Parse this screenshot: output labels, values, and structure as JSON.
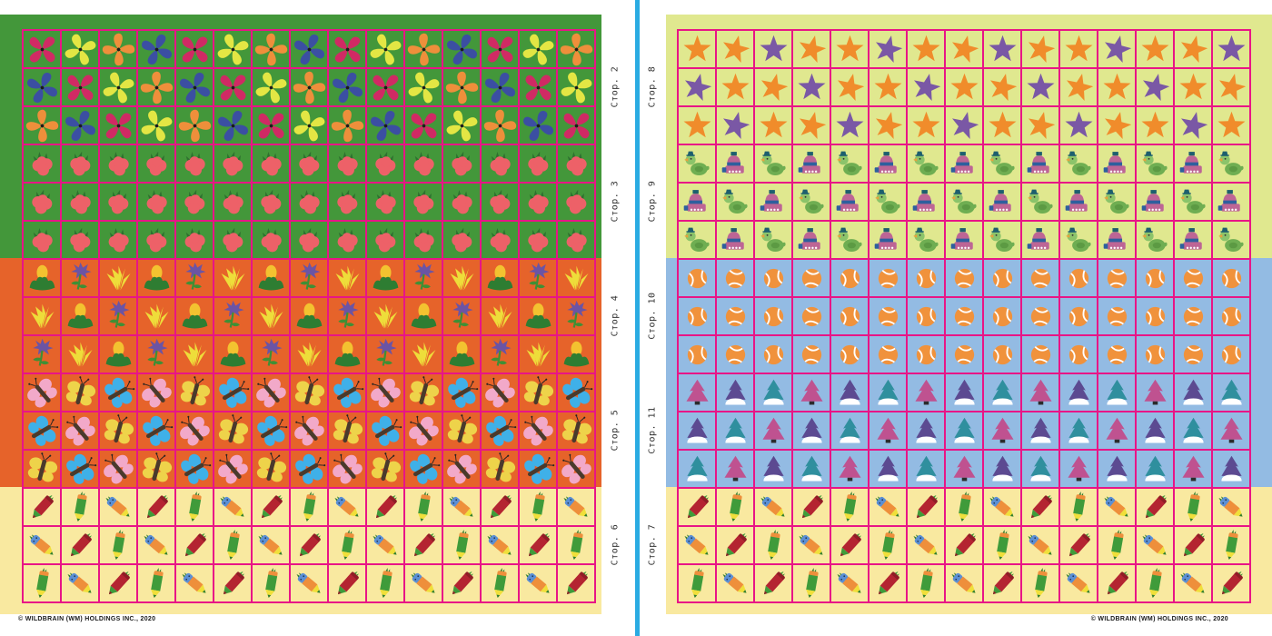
{
  "copyright": "© WILDBRAIN (WM) HOLDINGS INC., 2020",
  "colors": {
    "grid_line": "#e81586",
    "divider": "#2aabe2",
    "page_bg": "#ffffff",
    "band_green": "#43973a",
    "band_orange": "#e6632a",
    "band_yellow": "#f9e9a0",
    "band_lime": "#e0e88f",
    "band_blue": "#93bbe3",
    "label_text": "#333333"
  },
  "left_page": {
    "bands": [
      "band_green",
      "band_orange",
      "band_yellow"
    ],
    "sections": [
      {
        "id": "crop2",
        "label": "Стор. 2",
        "legend": {
          "R": {
            "symbol": "pinwheel",
            "name": "pinwheel-red",
            "color": "#d02a64",
            "rotate": 0
          },
          "Y": {
            "symbol": "pinwheel",
            "name": "pinwheel-yellow",
            "color": "#e3e644",
            "rotate": 25
          },
          "O": {
            "symbol": "pinwheel",
            "name": "pinwheel-orange",
            "color": "#ee8f3b",
            "rotate": 45
          },
          "B": {
            "symbol": "pinwheel",
            "name": "pinwheel-blue",
            "color": "#3b4fa2",
            "rotate": 70
          }
        },
        "rows": [
          "RYOBRYOBRYOBRYO",
          "BRYOBRYOBRYOBRY",
          "OBRYOBRYOBRYOBR"
        ]
      },
      {
        "id": "crop3",
        "label": "Стор. 3",
        "legend": {
          "S": {
            "symbol": "strawberry",
            "name": "strawberry"
          }
        },
        "rows": [
          "SSSSSSSSSSSSSSS",
          "SSSSSSSSSSSSSSS",
          "SSSSSSSSSSSSSSS"
        ]
      },
      {
        "id": "crop4",
        "label": "Стор. 4",
        "legend": {
          "C": {
            "symbol": "corn",
            "name": "corn-plant"
          },
          "F": {
            "symbol": "cornflower",
            "name": "purple-cornflower"
          },
          "G": {
            "symbol": "grass",
            "name": "yellow-grass-tuft"
          }
        },
        "rows": [
          "CFGCFGCFGCFGCFG",
          "GCFGCFGCFGCFGCF",
          "FGCFGCFGCFGCFGC"
        ]
      },
      {
        "id": "crop5",
        "label": "Стор. 5",
        "legend": {
          "P": {
            "symbol": "butterfly",
            "name": "butterfly-pink",
            "color": "#f2a9c9",
            "rotate": 0
          },
          "Y": {
            "symbol": "butterfly",
            "name": "butterfly-yellow",
            "color": "#eed34a",
            "rotate": 55
          },
          "B": {
            "symbol": "butterfly",
            "name": "butterfly-blue",
            "color": "#3fb0e8",
            "rotate": 100
          }
        },
        "rows": [
          "PYBPYBPYBPYBPYB",
          "BPYBPYBPYBPYBPY",
          "YBPYBPYBPYBPYBP"
        ]
      },
      {
        "id": "crop6",
        "label": "Стор. 6",
        "legend": {
          "R": {
            "symbol": "pencil-red",
            "name": "pencil-red"
          },
          "G": {
            "symbol": "pencil-green",
            "name": "pencil-orange-green"
          },
          "B": {
            "symbol": "pencil-blue",
            "name": "pencil-blue-orange"
          }
        },
        "rows": [
          "RGBRGBRGBRGBRGB",
          "BRGBRGBRGBRGBRG",
          "GBRGBRGBRGBRGBR"
        ]
      }
    ]
  },
  "right_page": {
    "bands": [
      "band_lime",
      "band_blue",
      "band_yellow"
    ],
    "sections": [
      {
        "id": "crop8",
        "label": "Стор. 8",
        "legend": {
          "O": {
            "symbol": "star",
            "name": "star-orange",
            "color": "#f08c2b"
          },
          "P": {
            "symbol": "star",
            "name": "star-purple",
            "color": "#7a58a5"
          }
        },
        "rows": [
          "OOPOOPOOPOOPOOP",
          "POOPOOPOOPOOPOO",
          "OPOOPOOPOOPOOPO"
        ]
      },
      {
        "id": "crop9",
        "label": "Стор. 9",
        "legend": {
          "D": {
            "symbol": "duck",
            "name": "green-duck-with-hat"
          },
          "T": {
            "symbol": "train",
            "name": "pink-toy-train"
          }
        },
        "rows": [
          "DTDTDTDTDTDTDTD",
          "TDTDTDTDTDTDTDT",
          "DTDTDTDTDTDTDTD"
        ]
      },
      {
        "id": "crop10",
        "label": "Стор. 10",
        "legend": {
          "A": {
            "symbol": "ball",
            "name": "tennis-ball",
            "rotate": 0
          },
          "B": {
            "symbol": "ball",
            "name": "tennis-ball",
            "rotate": 105
          }
        },
        "rows": [
          "ABABABABABABABA",
          "ABABABABABABABA",
          "ABABABABABABABA"
        ]
      },
      {
        "id": "crop11",
        "label": "Стор. 11",
        "legend": {
          "K": {
            "symbol": "tree",
            "name": "fir-tree-pink",
            "color": "#bf5290"
          },
          "U": {
            "symbol": "tree-snow",
            "name": "fir-tree-purple-snow",
            "color": "#5c4a91"
          },
          "E": {
            "symbol": "tree-snow",
            "name": "fir-tree-teal-snow",
            "color": "#2f8f9e"
          }
        },
        "rows": [
          "KUEKUEKUEKUEKUE",
          "UEKUEKUEKUEKUEK",
          "EKUEKUEKUEKUEKU"
        ]
      },
      {
        "id": "crop7",
        "label": "Стор. 7",
        "legend": {
          "R": {
            "symbol": "pencil-red",
            "name": "pencil-red"
          },
          "G": {
            "symbol": "pencil-green",
            "name": "pencil-orange-green"
          },
          "B": {
            "symbol": "pencil-blue",
            "name": "pencil-blue-orange"
          }
        },
        "rows": [
          "RGBRGBRGBRGBRGB",
          "BRGBRGBRGBRGBRG",
          "GBRGBRGBRGBRGBR"
        ]
      }
    ]
  }
}
